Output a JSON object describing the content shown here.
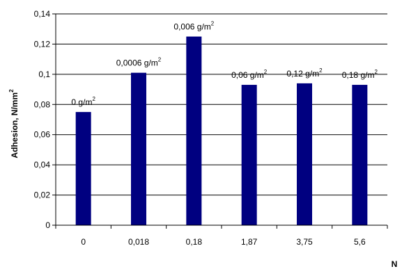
{
  "chart_data": {
    "type": "bar",
    "title": "",
    "xlabel": "N",
    "ylabel": "Adhesion, N/mm",
    "ylabel_sup": "2",
    "categories": [
      "0",
      "0,018",
      "0,18",
      "1,87",
      "3,75",
      "5,6"
    ],
    "values": [
      0.075,
      0.101,
      0.125,
      0.093,
      0.094,
      0.093
    ],
    "bar_labels": [
      {
        "text": "0 g/m",
        "sup": "2"
      },
      {
        "text": "0,0006 g/m",
        "sup": "2"
      },
      {
        "text": "0,006 g/m",
        "sup": "2"
      },
      {
        "text": "0,06 g/m",
        "sup": "2"
      },
      {
        "text": "0,12 g/m",
        "sup": "2"
      },
      {
        "text": "0,18 g/m",
        "sup": "2"
      }
    ],
    "ylim": [
      0,
      0.14
    ],
    "yticks": [
      0,
      0.02,
      0.04,
      0.06,
      0.08,
      0.1,
      0.12,
      0.14
    ],
    "ytick_labels": [
      "0",
      "0,02",
      "0,04",
      "0,06",
      "0,08",
      "0,1",
      "0,12",
      "0,14"
    ],
    "grid": true,
    "legend": "none",
    "bar_color": "#000080"
  }
}
